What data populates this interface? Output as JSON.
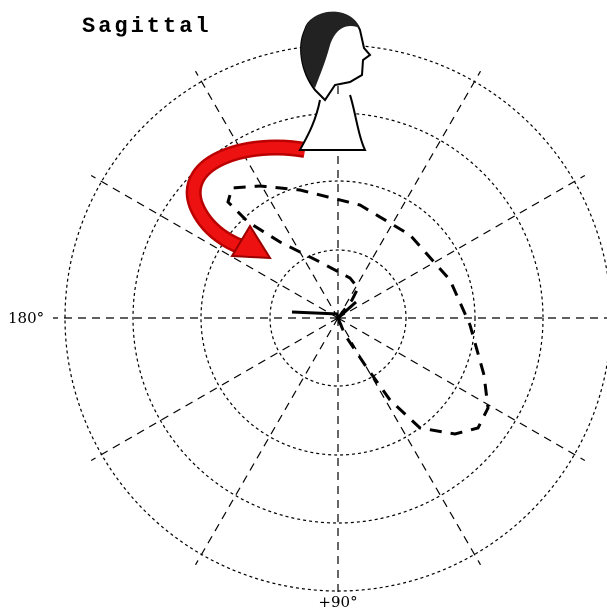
{
  "title": "Sagittal",
  "labels": {
    "left": "180°",
    "bottom": "+90°"
  }
}
